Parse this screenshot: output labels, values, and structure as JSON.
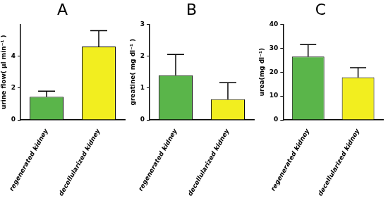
{
  "chart_data": [
    {
      "type": "bar",
      "title": "A",
      "y_label": "urine flow( µl min⁻¹ )",
      "categories": [
        "regenerated kidney",
        "decellularized kidney"
      ],
      "values": [
        1.45,
        4.6
      ],
      "errors": [
        0.35,
        1.0
      ],
      "colors": [
        "#5ab54a",
        "#f2ee1f"
      ],
      "ylim": [
        0,
        6
      ],
      "yticks": [
        0,
        2,
        4
      ],
      "grid": false
    },
    {
      "type": "bar",
      "title": "B",
      "y_label": "greatine( mg dl⁻¹ )",
      "categories": [
        "regenerated kidney",
        "decellularized kidney"
      ],
      "values": [
        1.4,
        0.65
      ],
      "errors": [
        0.65,
        0.52
      ],
      "colors": [
        "#5ab54a",
        "#f2ee1f"
      ],
      "ylim": [
        0,
        3
      ],
      "yticks": [
        0,
        1,
        2,
        3
      ],
      "grid": false
    },
    {
      "type": "bar",
      "title": "C",
      "y_label": "urea(mg dl⁻¹)",
      "categories": [
        "regenerated kidney",
        "decellularized kidney"
      ],
      "values": [
        26.5,
        17.8
      ],
      "errors": [
        5.0,
        4.0
      ],
      "colors": [
        "#5ab54a",
        "#f2ee1f"
      ],
      "ylim": [
        0,
        40
      ],
      "yticks": [
        0,
        10,
        20,
        30,
        40
      ],
      "grid": false
    }
  ]
}
